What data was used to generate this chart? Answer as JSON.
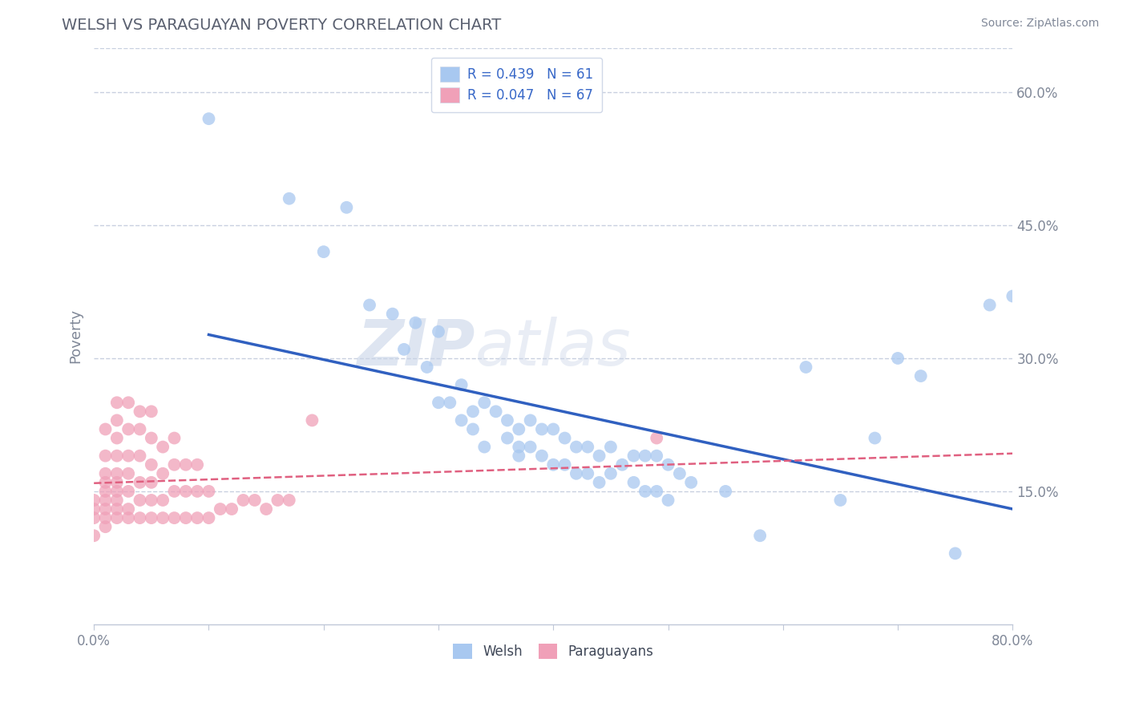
{
  "title": "WELSH VS PARAGUAYAN POVERTY CORRELATION CHART",
  "source_text": "Source: ZipAtlas.com",
  "ylabel": "Poverty",
  "xlim": [
    0.0,
    0.8
  ],
  "ylim": [
    0.0,
    0.65
  ],
  "x_ticks": [
    0.0,
    0.1,
    0.2,
    0.3,
    0.4,
    0.5,
    0.6,
    0.7,
    0.8
  ],
  "x_tick_labels": [
    "0.0%",
    "",
    "",
    "",
    "",
    "",
    "",
    "",
    "80.0%"
  ],
  "y_ticks_right": [
    0.15,
    0.3,
    0.45,
    0.6
  ],
  "y_tick_labels_right": [
    "15.0%",
    "30.0%",
    "45.0%",
    "60.0%"
  ],
  "welsh_color": "#a8c8f0",
  "paraguayan_color": "#f0a0b8",
  "welsh_line_color": "#3060c0",
  "paraguayan_line_color": "#e06080",
  "background_color": "#ffffff",
  "grid_color": "#c8d0e0",
  "legend_R_welsh": "R = 0.439",
  "legend_N_welsh": "N = 61",
  "legend_R_paraguayan": "R = 0.047",
  "legend_N_paraguayan": "N = 67",
  "welsh_scatter_x": [
    0.1,
    0.17,
    0.2,
    0.22,
    0.24,
    0.26,
    0.27,
    0.28,
    0.29,
    0.3,
    0.3,
    0.31,
    0.32,
    0.32,
    0.33,
    0.33,
    0.34,
    0.34,
    0.35,
    0.36,
    0.36,
    0.37,
    0.37,
    0.37,
    0.38,
    0.38,
    0.39,
    0.39,
    0.4,
    0.4,
    0.41,
    0.41,
    0.42,
    0.42,
    0.43,
    0.43,
    0.44,
    0.44,
    0.45,
    0.45,
    0.46,
    0.47,
    0.47,
    0.48,
    0.48,
    0.49,
    0.49,
    0.5,
    0.5,
    0.51,
    0.52,
    0.55,
    0.58,
    0.62,
    0.65,
    0.68,
    0.7,
    0.72,
    0.75,
    0.78,
    0.8
  ],
  "welsh_scatter_y": [
    0.57,
    0.48,
    0.42,
    0.47,
    0.36,
    0.35,
    0.31,
    0.34,
    0.29,
    0.25,
    0.33,
    0.25,
    0.27,
    0.23,
    0.24,
    0.22,
    0.25,
    0.2,
    0.24,
    0.23,
    0.21,
    0.22,
    0.2,
    0.19,
    0.23,
    0.2,
    0.22,
    0.19,
    0.22,
    0.18,
    0.21,
    0.18,
    0.2,
    0.17,
    0.2,
    0.17,
    0.19,
    0.16,
    0.2,
    0.17,
    0.18,
    0.19,
    0.16,
    0.19,
    0.15,
    0.19,
    0.15,
    0.18,
    0.14,
    0.17,
    0.16,
    0.15,
    0.1,
    0.29,
    0.14,
    0.21,
    0.3,
    0.28,
    0.08,
    0.36,
    0.37
  ],
  "paraguayan_scatter_x": [
    0.0,
    0.0,
    0.0,
    0.0,
    0.01,
    0.01,
    0.01,
    0.01,
    0.01,
    0.01,
    0.01,
    0.01,
    0.01,
    0.02,
    0.02,
    0.02,
    0.02,
    0.02,
    0.02,
    0.02,
    0.02,
    0.02,
    0.02,
    0.03,
    0.03,
    0.03,
    0.03,
    0.03,
    0.03,
    0.03,
    0.04,
    0.04,
    0.04,
    0.04,
    0.04,
    0.04,
    0.05,
    0.05,
    0.05,
    0.05,
    0.05,
    0.05,
    0.06,
    0.06,
    0.06,
    0.06,
    0.07,
    0.07,
    0.07,
    0.07,
    0.08,
    0.08,
    0.08,
    0.09,
    0.09,
    0.09,
    0.1,
    0.1,
    0.11,
    0.12,
    0.13,
    0.14,
    0.15,
    0.16,
    0.17,
    0.49,
    0.19
  ],
  "paraguayan_scatter_y": [
    0.12,
    0.13,
    0.14,
    0.1,
    0.13,
    0.12,
    0.11,
    0.14,
    0.15,
    0.16,
    0.17,
    0.19,
    0.22,
    0.12,
    0.13,
    0.14,
    0.15,
    0.16,
    0.17,
    0.19,
    0.21,
    0.23,
    0.25,
    0.12,
    0.13,
    0.15,
    0.17,
    0.19,
    0.22,
    0.25,
    0.12,
    0.14,
    0.16,
    0.19,
    0.22,
    0.24,
    0.12,
    0.14,
    0.16,
    0.18,
    0.21,
    0.24,
    0.12,
    0.14,
    0.17,
    0.2,
    0.12,
    0.15,
    0.18,
    0.21,
    0.12,
    0.15,
    0.18,
    0.12,
    0.15,
    0.18,
    0.12,
    0.15,
    0.13,
    0.13,
    0.14,
    0.14,
    0.13,
    0.14,
    0.14,
    0.21,
    0.23
  ],
  "watermark_zip": "ZIP",
  "watermark_atlas": "atlas",
  "title_color": "#5a6070",
  "title_fontsize": 14,
  "axis_label_color": "#808898",
  "tick_color": "#808898",
  "legend_text_color": "#3868c8",
  "legend_text_color2": "#404858"
}
